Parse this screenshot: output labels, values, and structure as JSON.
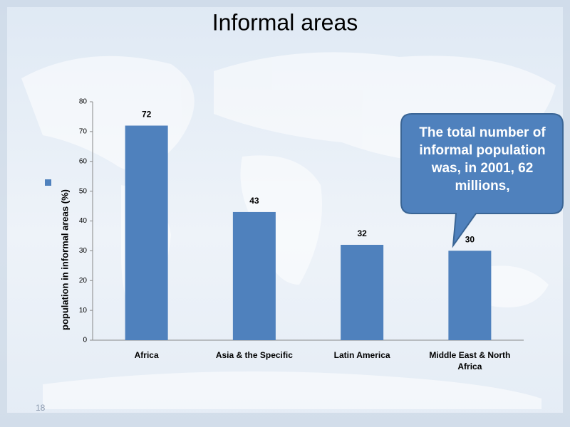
{
  "chart_data": {
    "type": "bar",
    "title": "Informal areas",
    "y_label": "population in informal areas (%)",
    "categories": [
      "Africa",
      "Asia & the Specific",
      "Latin America",
      "Middle East & North Africa"
    ],
    "values": [
      72,
      43,
      32,
      30
    ],
    "color": "#4f81bd",
    "ylim": [
      0,
      80
    ],
    "yticks": [
      0,
      10,
      20,
      30,
      40,
      50,
      60,
      70,
      80
    ],
    "legend": "left",
    "data_labels": true
  },
  "callout": "The total number of informal population was, in 2001, 62 millions,",
  "slide_number": "18"
}
